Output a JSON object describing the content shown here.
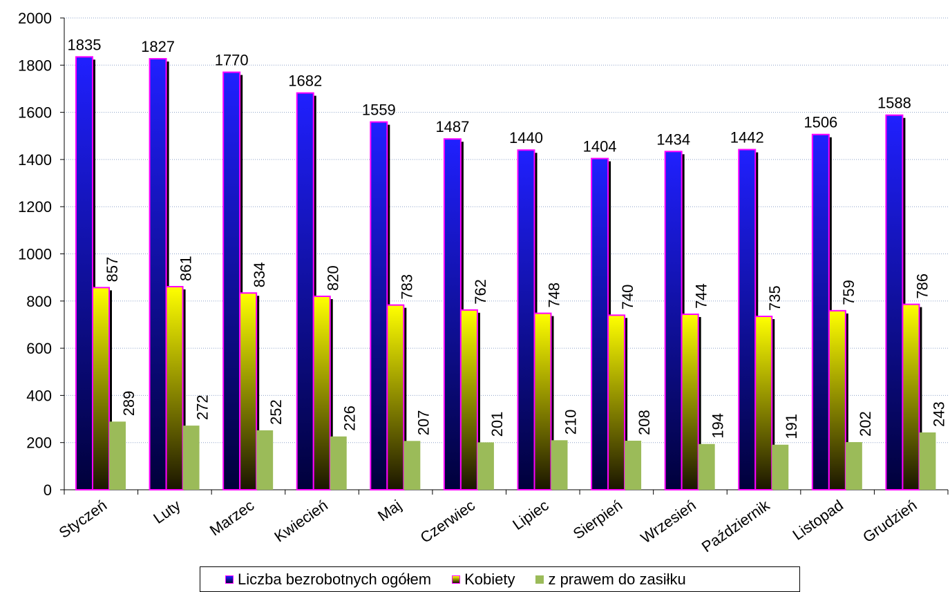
{
  "chart_data": {
    "type": "bar",
    "categories": [
      "Styczeń",
      "Luty",
      "Marzec",
      "Kwiecień",
      "Maj",
      "Czerwiec",
      "Lipiec",
      "Sierpień",
      "Wrzesień",
      "Październik",
      "Listopad",
      "Grudzień"
    ],
    "series": [
      {
        "name": "Liczba bezrobotnych ogółem",
        "values": [
          1835,
          1827,
          1770,
          1682,
          1559,
          1487,
          1440,
          1404,
          1434,
          1442,
          1506,
          1588
        ],
        "color": "#1a1aff"
      },
      {
        "name": "Kobiety",
        "values": [
          857,
          861,
          834,
          820,
          783,
          762,
          748,
          740,
          744,
          735,
          759,
          786
        ],
        "color": "#ffff00"
      },
      {
        "name": "z prawem do zasiłku",
        "values": [
          289,
          272,
          252,
          226,
          207,
          201,
          210,
          208,
          194,
          191,
          202,
          243
        ],
        "color": "#9bbb59"
      }
    ],
    "yticks": [
      "0",
      "200",
      "400",
      "600",
      "800",
      "1000",
      "1200",
      "1400",
      "1600",
      "1800",
      "2000"
    ],
    "ylim": [
      0,
      2000
    ],
    "grid": true,
    "legend_position": "bottom",
    "bar_border_color": "#ff00ff"
  }
}
